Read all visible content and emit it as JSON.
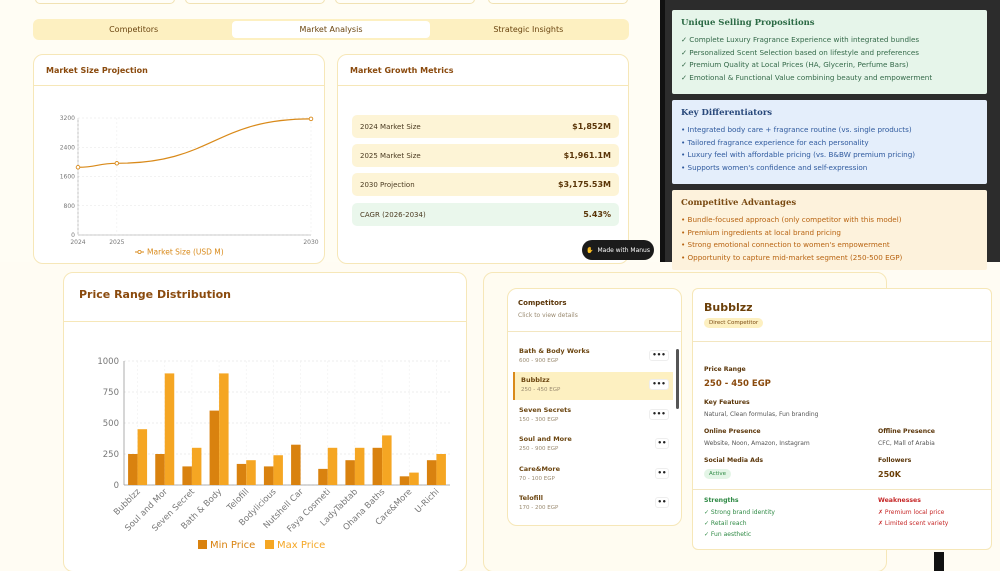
{
  "tabs": [
    {
      "label": "Competitors"
    },
    {
      "label": "Market Analysis"
    },
    {
      "label": "Strategic Insights"
    }
  ],
  "market_size": {
    "title": "Market Size Projection",
    "legend": "Market Size (USD M)",
    "chart_data": {
      "type": "line",
      "x": [
        "2024",
        "2025",
        "2030"
      ],
      "series": [
        {
          "name": "Market Size (USD M)",
          "values": [
            1852,
            1961.1,
            3175.53
          ]
        }
      ],
      "yticks": [
        0,
        800,
        1600,
        2400,
        3200
      ],
      "ylim": [
        0,
        3200
      ],
      "color": "#d98a1a"
    }
  },
  "growth": {
    "title": "Market Growth Metrics",
    "metrics": [
      {
        "label": "2024 Market Size",
        "value": "$1,852M"
      },
      {
        "label": "2025 Market Size",
        "value": "$1,961.1M"
      },
      {
        "label": "2030 Projection",
        "value": "$3,175.53M"
      },
      {
        "label": "CAGR (2026-2034)",
        "value": "5.43%"
      }
    ]
  },
  "made_with": "Made with Manus",
  "usp": {
    "title": "Unique Selling Propositions",
    "items": [
      "✓ Complete Luxury Fragrance Experience with integrated bundles",
      "✓ Personalized Scent Selection based on lifestyle and preferences",
      "✓ Premium Quality at Local Prices (HA, Glycerin, Perfume Bars)",
      "✓ Emotional & Functional Value combining beauty and empowerment"
    ]
  },
  "differentiators": {
    "title": "Key Differentiators",
    "items": [
      "• Integrated body care + fragrance routine (vs. single products)",
      "• Tailored fragrance experience for each personality",
      "• Luxury feel with affordable pricing (vs. B&BW premium pricing)",
      "• Supports women's confidence and self-expression"
    ]
  },
  "advantages": {
    "title": "Competitive Advantages",
    "items": [
      "• Bundle-focused approach (only competitor with this model)",
      "• Premium ingredients at local brand pricing",
      "• Strong emotional connection to women's empowerment",
      "• Opportunity to capture mid-market segment (250-500 EGP)"
    ]
  },
  "price_range": {
    "title": "Price Range Distribution",
    "chart_data": {
      "type": "bar",
      "categories": [
        "Bubblzz",
        "Soul and Mor",
        "Seven Secret",
        "Bath & Body",
        "Telofill",
        "Bodylicious",
        "Nutshell Car",
        "Faya Cosmeti",
        "LadyTabtab",
        "Ohana Baths",
        "Care&More",
        "U-Richi"
      ],
      "series": [
        {
          "name": "Min Price",
          "values": [
            250,
            250,
            150,
            600,
            170,
            150,
            325,
            130,
            200,
            300,
            70,
            200
          ],
          "color": "#d9820f"
        },
        {
          "name": "Max Price",
          "values": [
            450,
            900,
            300,
            900,
            200,
            240,
            null,
            300,
            300,
            400,
            100,
            250
          ],
          "color": "#f5a623"
        }
      ],
      "yticks": [
        0,
        250,
        500,
        750,
        1000
      ],
      "ylim": [
        0,
        1000
      ],
      "legend": "bottom"
    }
  },
  "competitors": {
    "title": "Competitors",
    "subtitle": "Click to view details",
    "items": [
      {
        "name": "Bath & Body Works",
        "price": "600 - 900 EGP",
        "dots": "•••"
      },
      {
        "name": "Bubblzz",
        "price": "250 - 450 EGP",
        "dots": "•••"
      },
      {
        "name": "Seven Secrets",
        "price": "150 - 300 EGP",
        "dots": "•••"
      },
      {
        "name": "Soul and More",
        "price": "250 - 900 EGP",
        "dots": "••"
      },
      {
        "name": "Care&More",
        "price": "70 - 100 EGP",
        "dots": "••"
      },
      {
        "name": "Telofill",
        "price": "170 - 200 EGP",
        "dots": "••"
      }
    ]
  },
  "detail": {
    "name": "Bubblzz",
    "badge": "Direct Competitor",
    "price_label": "Price Range",
    "price": "250 - 450 EGP",
    "features_label": "Key Features",
    "features": "Natural, Clean formulas, Fun branding",
    "online_label": "Online Presence",
    "online": "Website, Noon, Amazon, Instagram",
    "offline_label": "Offline Presence",
    "offline": "CFC, Mall of Arabia",
    "ads_label": "Social Media Ads",
    "ads": "Active",
    "followers_label": "Followers",
    "followers": "250K",
    "strengths_label": "Strengths",
    "strengths": [
      "✓ Strong brand identity",
      "✓ Retail reach",
      "✓ Fun aesthetic"
    ],
    "weaknesses_label": "Weaknesses",
    "weaknesses": [
      "✗ Premium local price",
      "✗ Limited scent variety"
    ]
  }
}
